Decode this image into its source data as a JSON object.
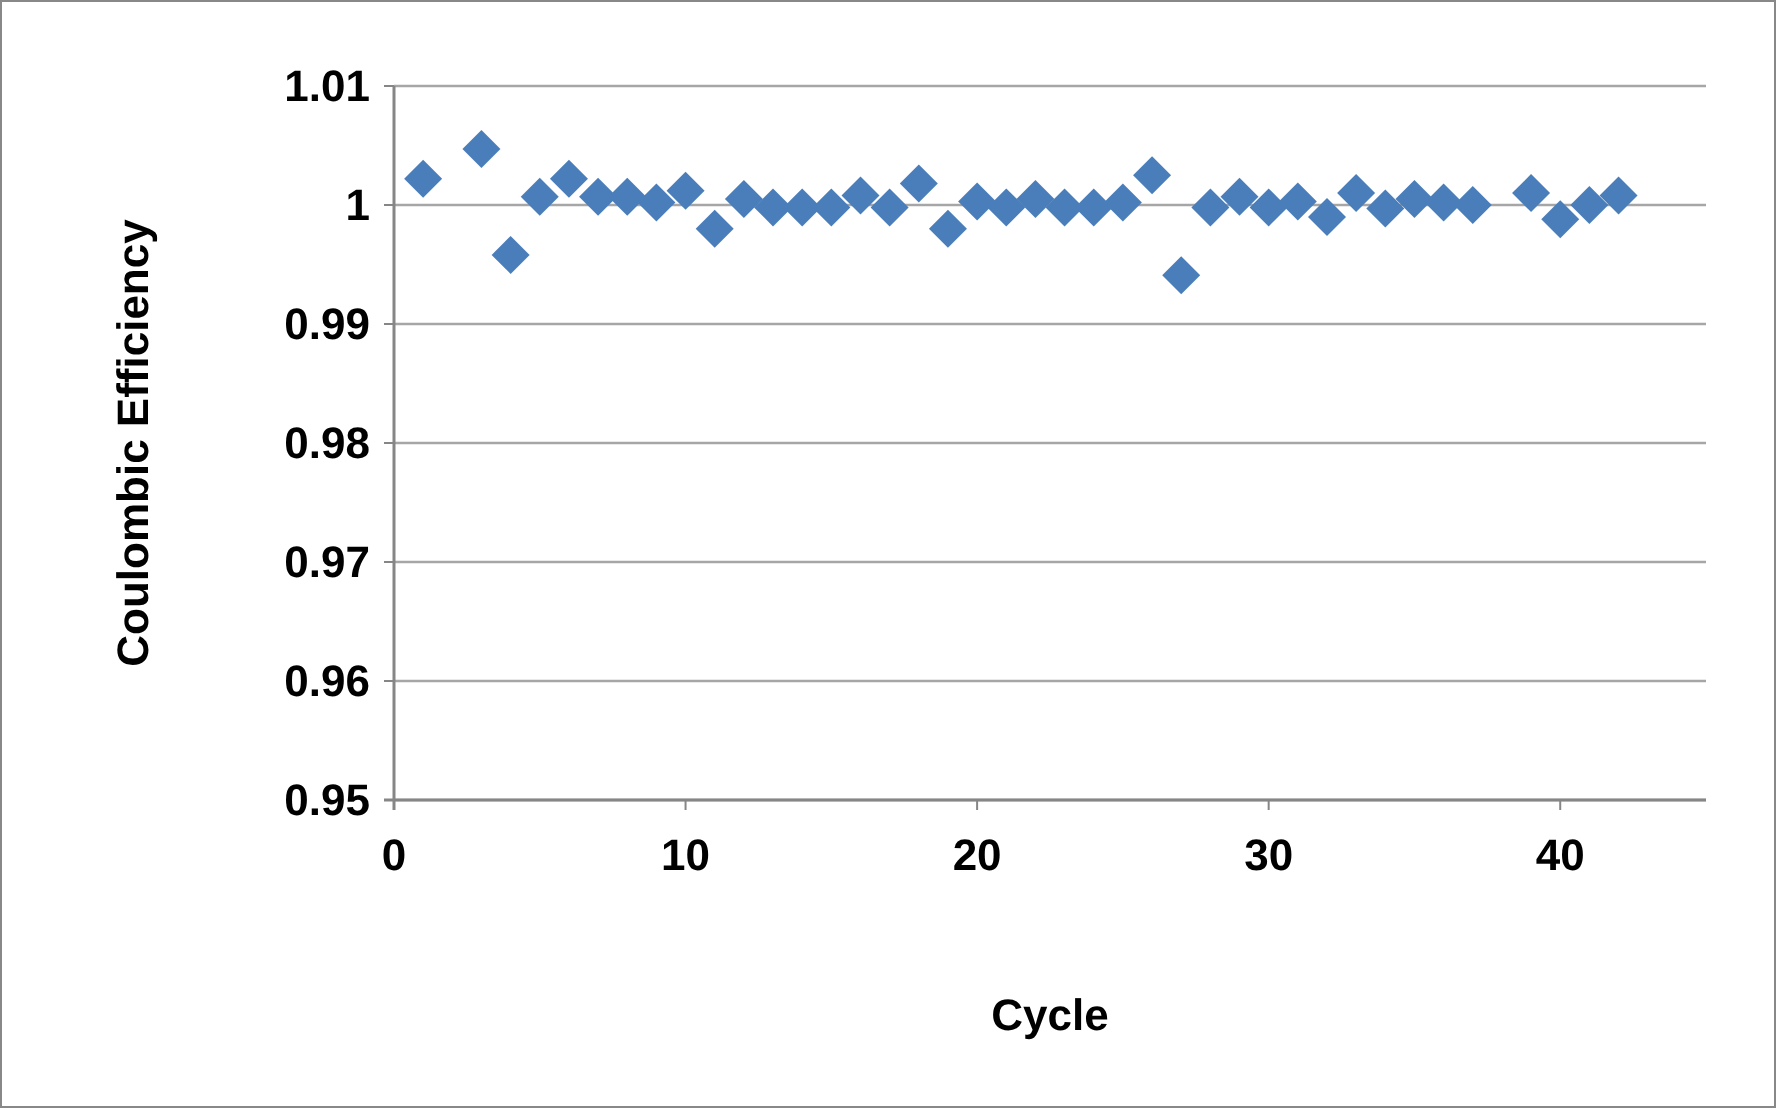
{
  "chart_data": {
    "type": "scatter",
    "xlabel": "Cycle",
    "ylabel": "Coulombic Efficiency",
    "x": [
      1,
      3,
      4,
      5,
      6,
      7,
      8,
      9,
      10,
      11,
      12,
      13,
      14,
      15,
      16,
      17,
      18,
      19,
      20,
      21,
      22,
      23,
      24,
      25,
      26,
      27,
      28,
      29,
      30,
      31,
      32,
      33,
      34,
      35,
      36,
      37,
      39,
      40,
      41,
      42
    ],
    "series": [
      {
        "color": "#4a7ebb",
        "values": [
          1.0022,
          1.0047,
          0.9958,
          1.0007,
          1.0022,
          1.0007,
          1.0007,
          1.0002,
          1.0012,
          0.998,
          1.0005,
          0.9998,
          0.9998,
          0.9998,
          1.0008,
          0.9998,
          1.0018,
          0.998,
          1.0003,
          0.9998,
          1.0005,
          0.9998,
          0.9998,
          1.0002,
          1.0025,
          0.9941,
          0.9998,
          1.0007,
          0.9998,
          1.0003,
          0.999,
          1.001,
          0.9997,
          1.0005,
          1.0002,
          1.0,
          1.001,
          0.9988,
          1.0,
          1.0008
        ]
      }
    ],
    "xlim": [
      0,
      45
    ],
    "xticks": [
      0,
      10,
      20,
      30,
      40
    ],
    "ylim": [
      0.95,
      1.01
    ],
    "yticks": [
      0.95,
      0.96,
      0.97,
      0.98,
      0.99,
      1,
      1.01
    ],
    "grid": "y",
    "marker": "diamond"
  }
}
